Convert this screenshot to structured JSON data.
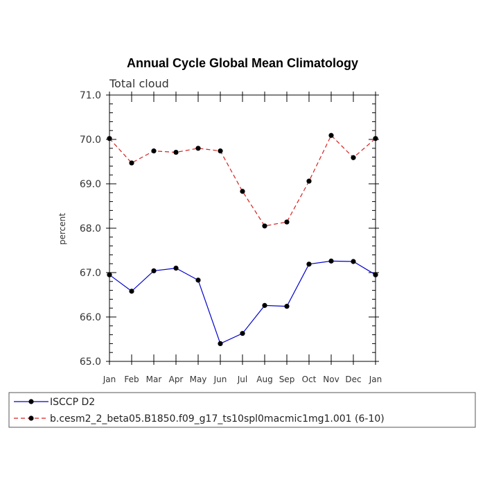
{
  "chart_data": {
    "type": "line",
    "title": "Annual Cycle Global Mean Climatology",
    "subtitle": "Total cloud",
    "xlabel": "",
    "ylabel": "percent",
    "categories": [
      "Jan",
      "Feb",
      "Mar",
      "Apr",
      "May",
      "Jun",
      "Jul",
      "Aug",
      "Sep",
      "Oct",
      "Nov",
      "Dec",
      "Jan"
    ],
    "ylim": [
      65.0,
      71.0
    ],
    "yticks": [
      "65.0",
      "66.0",
      "67.0",
      "68.0",
      "69.0",
      "70.0",
      "71.0"
    ],
    "grid": false,
    "legend_position": "bottom",
    "series": [
      {
        "name": "ISCCP D2",
        "color": "#0000cc",
        "dash": "solid",
        "values": [
          66.95,
          66.58,
          67.04,
          67.1,
          66.83,
          65.4,
          65.63,
          66.26,
          66.24,
          67.19,
          67.26,
          67.25,
          66.95
        ]
      },
      {
        "name": "b.cesm2_2_beta05.B1850.f09_g17_ts10spl0macmic1mg1.001 (6-10)",
        "color": "#d42020",
        "dash": "dashed",
        "values": [
          70.02,
          69.47,
          69.74,
          69.71,
          69.8,
          69.74,
          68.83,
          68.05,
          68.14,
          69.06,
          70.09,
          69.59,
          70.02
        ]
      }
    ]
  }
}
